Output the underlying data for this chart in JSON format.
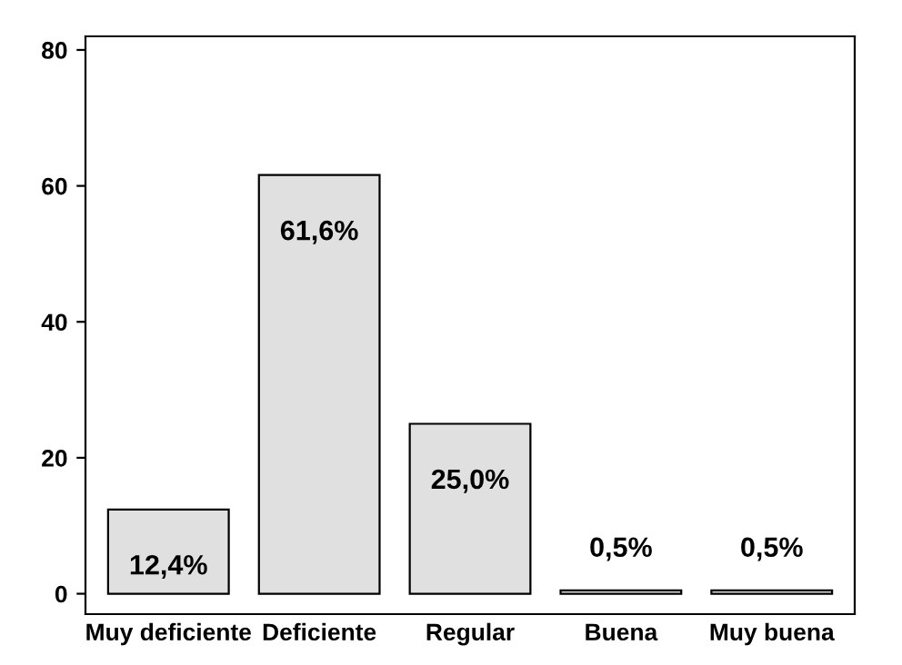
{
  "chart_data": {
    "type": "bar",
    "categories": [
      "Muy deficiente",
      "Deficiente",
      "Regular",
      "Buena",
      "Muy buena"
    ],
    "values": [
      12.4,
      61.6,
      25.0,
      0.5,
      0.5
    ],
    "value_labels": [
      "12,4%",
      "61,6%",
      "25,0%",
      "0,5%",
      "0,5%"
    ],
    "color": "#e0e0e0",
    "ylim": [
      -3,
      82
    ],
    "yticks": [
      0,
      20,
      40,
      60,
      80
    ],
    "grid": false
  }
}
